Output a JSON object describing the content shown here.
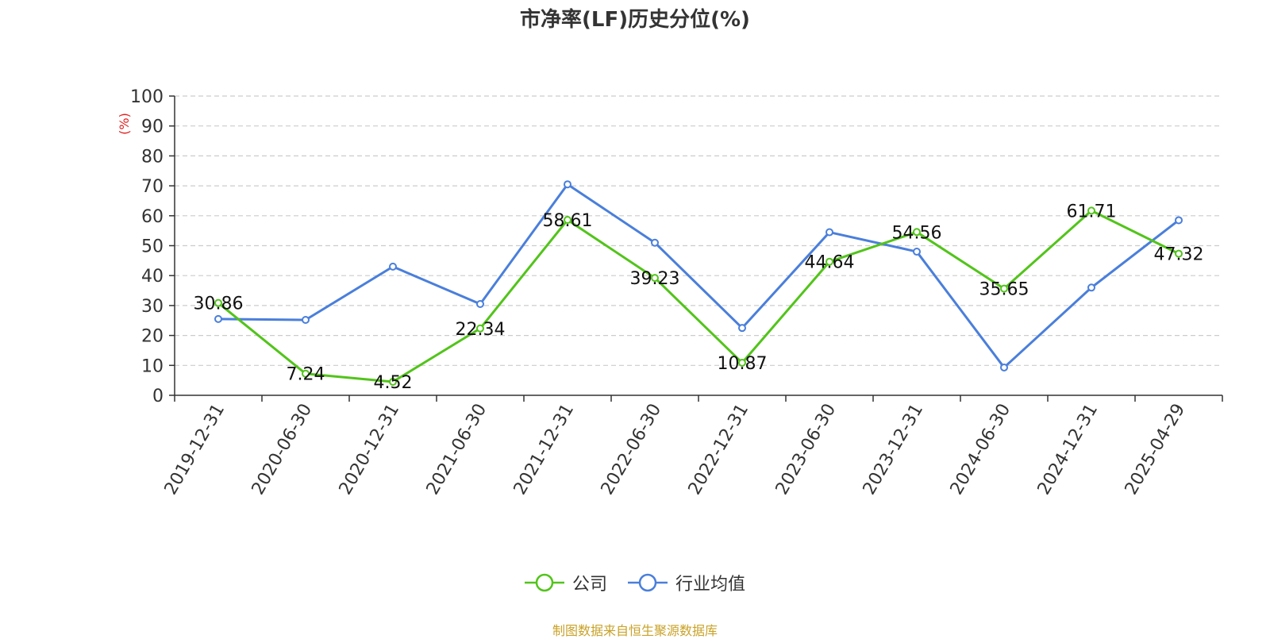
{
  "chart_data": {
    "type": "line",
    "title": "市净率(LF)历史分位(%)",
    "ylabel": "(%)",
    "xlabel": "",
    "ylim": [
      0,
      100
    ],
    "yticks": [
      0,
      10,
      20,
      30,
      40,
      50,
      60,
      70,
      80,
      90,
      100
    ],
    "grid": true,
    "legend_position": "bottom",
    "categories": [
      "2019-12-31",
      "2020-06-30",
      "2020-12-31",
      "2021-06-30",
      "2021-12-31",
      "2022-06-30",
      "2022-12-31",
      "2023-06-30",
      "2023-12-31",
      "2024-06-30",
      "2024-12-31",
      "2025-04-29"
    ],
    "series": [
      {
        "name": "公司",
        "color": "#52c41a",
        "values": [
          30.86,
          7.24,
          4.52,
          22.34,
          58.61,
          39.23,
          10.87,
          44.64,
          54.56,
          35.65,
          61.71,
          47.32
        ],
        "labels": [
          "30.86",
          "7.24",
          "4.52",
          "22.34",
          "58.61",
          "39.23",
          "10.87",
          "44.64",
          "54.56",
          "35.65",
          "61.71",
          "47.32"
        ]
      },
      {
        "name": "行业均值",
        "color": "#4a7fdb",
        "values": [
          25.5,
          25.2,
          43.0,
          30.5,
          70.5,
          51.0,
          22.5,
          54.5,
          48.0,
          9.3,
          36.0,
          58.5
        ]
      }
    ]
  },
  "source_note": "制图数据来自恒生聚源数据库",
  "colors": {
    "ylabel": "#e02020",
    "axis": "#333333",
    "grid": "#cccccc",
    "source": "#c9a227"
  }
}
